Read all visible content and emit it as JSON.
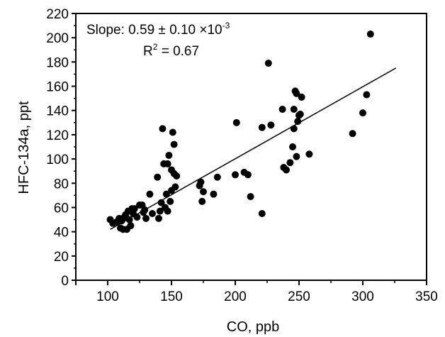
{
  "chart_data": {
    "type": "scatter",
    "xlabel": "CO, ppb",
    "ylabel": "HFC-134a, ppt",
    "xlim": [
      75,
      350
    ],
    "ylim": [
      0,
      220
    ],
    "x_ticks": [
      "100",
      "150",
      "200",
      "250",
      "300",
      "350"
    ],
    "y_ticks": [
      "0",
      "20",
      "40",
      "60",
      "80",
      "100",
      "120",
      "140",
      "160",
      "180",
      "200",
      "220"
    ],
    "grid": false,
    "annotations": {
      "slope_text": "Slope: 0.59 ± 0.10 ×10",
      "slope_exp": "-3",
      "r2_prefix": "R",
      "r2_exp": "2",
      "r2_value": " = 0.67"
    },
    "fit_line": {
      "x": [
        102,
        326
      ],
      "y": [
        42,
        175
      ]
    },
    "points": [
      [
        102,
        50
      ],
      [
        104,
        47
      ],
      [
        107,
        48
      ],
      [
        109,
        51
      ],
      [
        110,
        43
      ],
      [
        111,
        49
      ],
      [
        112,
        42
      ],
      [
        113,
        52
      ],
      [
        114,
        54
      ],
      [
        115,
        42
      ],
      [
        116,
        57
      ],
      [
        117,
        50
      ],
      [
        118,
        45
      ],
      [
        119,
        59
      ],
      [
        120,
        55
      ],
      [
        121,
        59
      ],
      [
        123,
        52
      ],
      [
        125,
        62
      ],
      [
        127,
        62
      ],
      [
        128,
        56
      ],
      [
        129,
        58
      ],
      [
        130,
        51
      ],
      [
        133,
        71
      ],
      [
        135,
        55
      ],
      [
        139,
        85
      ],
      [
        140,
        51
      ],
      [
        141,
        57
      ],
      [
        142,
        64
      ],
      [
        143,
        125
      ],
      [
        144,
        96
      ],
      [
        145,
        60
      ],
      [
        146,
        71
      ],
      [
        147,
        57
      ],
      [
        147,
        96
      ],
      [
        148,
        103
      ],
      [
        149,
        65
      ],
      [
        150,
        91
      ],
      [
        150,
        74
      ],
      [
        151,
        122
      ],
      [
        152,
        112
      ],
      [
        152,
        88
      ],
      [
        153,
        77
      ],
      [
        154,
        86
      ],
      [
        172,
        78
      ],
      [
        173,
        81
      ],
      [
        174,
        65
      ],
      [
        175,
        73
      ],
      [
        183,
        71
      ],
      [
        186,
        85
      ],
      [
        200,
        87
      ],
      [
        201,
        130
      ],
      [
        207,
        89
      ],
      [
        210,
        87
      ],
      [
        212,
        69
      ],
      [
        221,
        55
      ],
      [
        221,
        126
      ],
      [
        226,
        179
      ],
      [
        228,
        128
      ],
      [
        237,
        141
      ],
      [
        238,
        93
      ],
      [
        240,
        91
      ],
      [
        243,
        97
      ],
      [
        245,
        110
      ],
      [
        246,
        141
      ],
      [
        246,
        125
      ],
      [
        247,
        156
      ],
      [
        248,
        102
      ],
      [
        248,
        154
      ],
      [
        249,
        131
      ],
      [
        250,
        136
      ],
      [
        251,
        137
      ],
      [
        252,
        151
      ],
      [
        258,
        104
      ],
      [
        292,
        121
      ],
      [
        300,
        138
      ],
      [
        303,
        153
      ],
      [
        306,
        203
      ]
    ]
  }
}
